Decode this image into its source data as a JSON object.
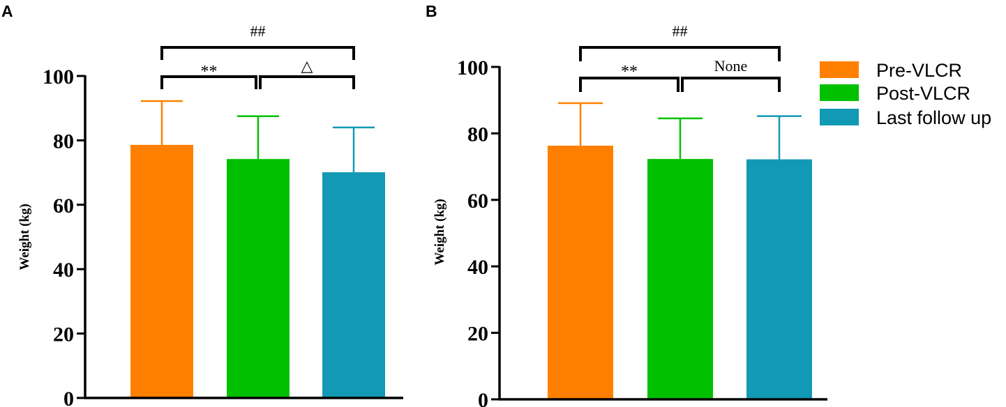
{
  "colors": {
    "pre": "#ff8000",
    "post": "#00c000",
    "last": "#129ab4",
    "axis": "#000000"
  },
  "legend": {
    "items": [
      {
        "label": "Pre-VLCR",
        "color": "#ff8000"
      },
      {
        "label": "Post-VLCR",
        "color": "#00c000"
      },
      {
        "label": "Last follow up",
        "color": "#129ab4"
      }
    ]
  },
  "chart_data": [
    {
      "type": "bar",
      "panel": "A",
      "title": "",
      "xlabel": "",
      "ylabel": "Weight (kg)",
      "ylim": [
        0,
        100
      ],
      "yticks": [
        0,
        20,
        40,
        60,
        80,
        100
      ],
      "ytick_labels": [
        "0",
        "20",
        "40",
        "60",
        "80",
        "100"
      ],
      "categories": [
        "Pre-VLCR",
        "Post-VLCR",
        "Last follow up"
      ],
      "values": [
        78.6,
        74.2,
        70.1
      ],
      "errors": [
        13.6,
        13.3,
        13.9
      ],
      "significance": [
        {
          "from": 0,
          "to": 1,
          "label": "**",
          "level": 1
        },
        {
          "from": 1,
          "to": 2,
          "label": "△",
          "level": 1
        },
        {
          "from": 0,
          "to": 2,
          "label": "##",
          "level": 2
        }
      ]
    },
    {
      "type": "bar",
      "panel": "B",
      "title": "",
      "xlabel": "",
      "ylabel": "Weight (kg)",
      "ylim": [
        0,
        100
      ],
      "yticks": [
        0,
        20,
        40,
        60,
        80,
        100
      ],
      "ytick_labels": [
        "0",
        "20",
        "40",
        "60",
        "80",
        "100"
      ],
      "categories": [
        "Pre-VLCR",
        "Post-VLCR",
        "Last follow up"
      ],
      "values": [
        76.3,
        72.3,
        72.2
      ],
      "errors": [
        12.8,
        12.2,
        13.0
      ],
      "significance": [
        {
          "from": 0,
          "to": 1,
          "label": "**",
          "level": 1
        },
        {
          "from": 1,
          "to": 2,
          "label": "None",
          "level": 1
        },
        {
          "from": 0,
          "to": 2,
          "label": "##",
          "level": 2
        }
      ]
    }
  ]
}
